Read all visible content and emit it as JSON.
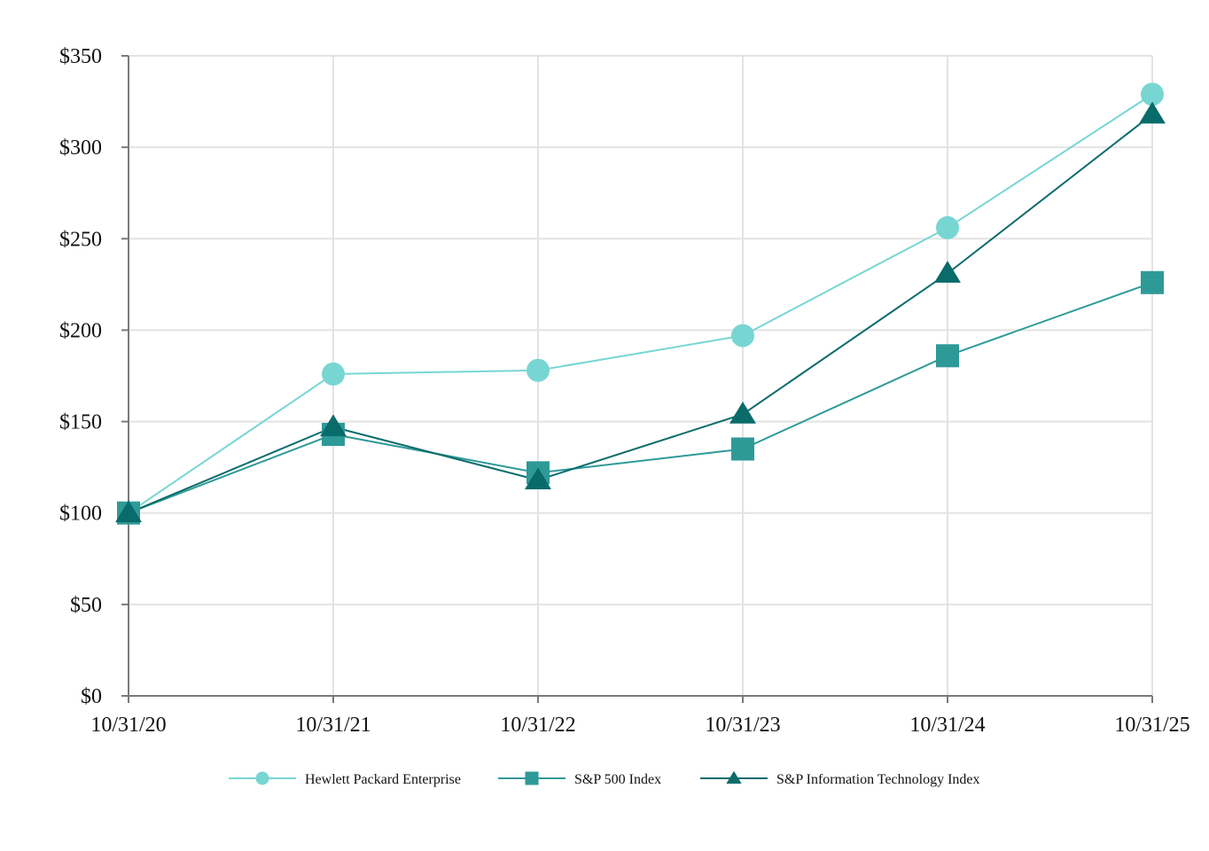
{
  "chart_data": {
    "type": "line",
    "title": "",
    "xlabel": "",
    "ylabel": "",
    "categories": [
      "10/31/20",
      "10/31/21",
      "10/31/22",
      "10/31/23",
      "10/31/24",
      "10/31/25"
    ],
    "y_ticks": [
      0,
      50,
      100,
      150,
      200,
      250,
      300,
      350
    ],
    "y_tick_labels": [
      "$0",
      "$50",
      "$100",
      "$150",
      "$200",
      "$250",
      "$300",
      "$350"
    ],
    "ylim": [
      0,
      350
    ],
    "grid": true,
    "legend_position": "bottom",
    "series": [
      {
        "name": "Hewlett Packard Enterprise",
        "marker": "circle",
        "color": "#78d6d2",
        "values": [
          100,
          176,
          178,
          197,
          256,
          329
        ]
      },
      {
        "name": "S&P 500 Index",
        "marker": "square",
        "color": "#2e9a98",
        "values": [
          100,
          143,
          122,
          135,
          186,
          226
        ]
      },
      {
        "name": "S&P Information Technology Index",
        "marker": "triangle",
        "color": "#0a6b6b",
        "values": [
          100,
          147,
          118,
          154,
          231,
          318
        ]
      }
    ]
  }
}
